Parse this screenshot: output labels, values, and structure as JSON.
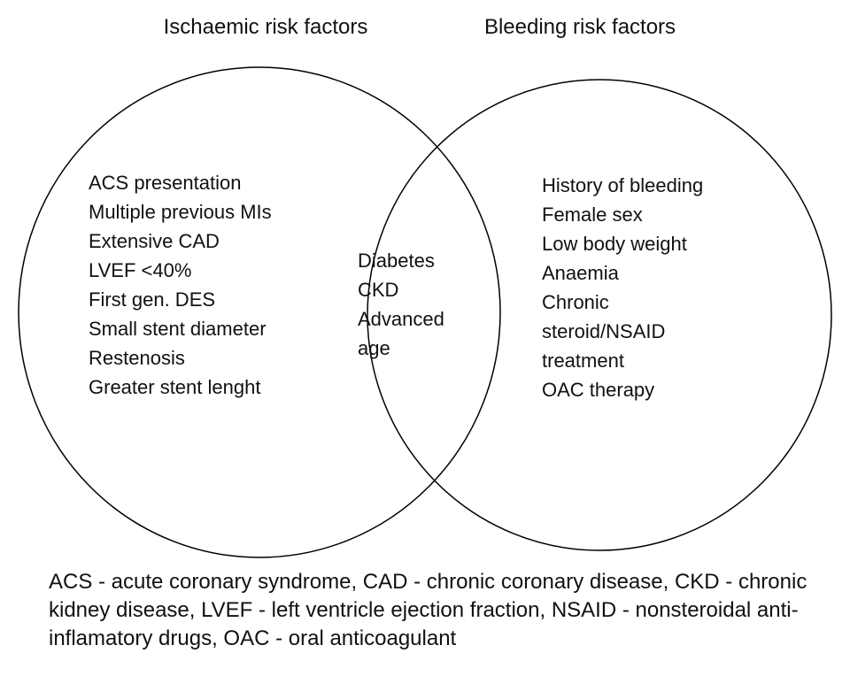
{
  "diagram": {
    "left_title": "Ischaemic risk factors",
    "right_title": "Bleeding risk factors",
    "left_items": [
      "ACS presentation",
      "Multiple previous MIs",
      "Extensive CAD",
      "LVEF <40%",
      "First gen. DES",
      "Small stent diameter",
      "Restenosis",
      "Greater stent lenght"
    ],
    "middle_items": [
      "Diabetes",
      "CKD",
      "Advanced age"
    ],
    "right_items": [
      "History of bleeding",
      "Female sex",
      "Low body weight",
      "Anaemia",
      "Chronic steroid/NSAID treatment",
      "OAC therapy"
    ],
    "legend": "ACS - acute coronary syndrome, CAD - chronic coronary disease, CKD - chronic kidney disease, LVEF - left ventricle ejection fraction, NSAID - nonsteroidal anti-inflamatory drugs, OAC - oral anticoagulant"
  },
  "colors": {
    "background": "#ffffff",
    "stroke": "#000000",
    "text": "#111111"
  }
}
